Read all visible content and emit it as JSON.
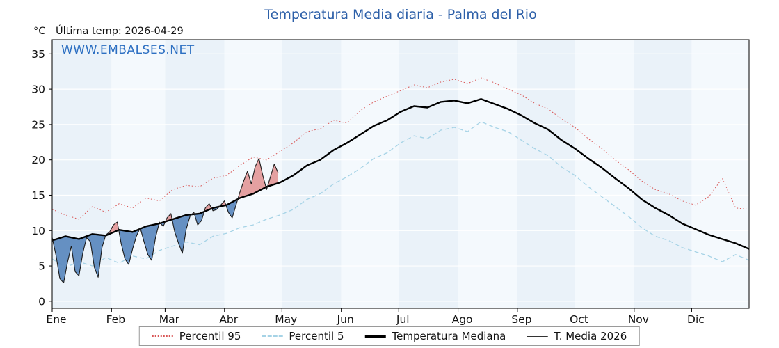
{
  "chart_data": {
    "type": "line",
    "title": "Temperatura Media diaria - Palma del Rio",
    "unit_label": "°C",
    "last_temp_label": "Última temp: 2026-04-29",
    "watermark": "WWW.EMBALSES.NET",
    "ylim": [
      -1,
      37
    ],
    "yticks": [
      0,
      5,
      10,
      15,
      20,
      25,
      30,
      35
    ],
    "months": [
      "Ene",
      "Feb",
      "Mar",
      "Abr",
      "May",
      "Jun",
      "Jul",
      "Ago",
      "Sep",
      "Oct",
      "Nov",
      "Dic"
    ],
    "month_start_days": [
      1,
      32,
      60,
      91,
      121,
      152,
      182,
      213,
      244,
      274,
      305,
      335
    ],
    "days_in_year": 365,
    "grid": true,
    "legend_position": "bottom",
    "plot_bg_odd": "#eaf2f9",
    "plot_bg_even": "#f4f9fd",
    "grid_color": "#ffffff",
    "climatology_days": [
      1,
      8,
      15,
      22,
      29,
      36,
      43,
      50,
      57,
      64,
      71,
      78,
      85,
      92,
      99,
      106,
      113,
      120,
      127,
      134,
      141,
      148,
      155,
      162,
      169,
      176,
      183,
      190,
      197,
      204,
      211,
      218,
      225,
      232,
      239,
      246,
      253,
      260,
      267,
      274,
      281,
      288,
      295,
      302,
      309,
      316,
      323,
      330,
      337,
      344,
      351,
      358,
      365
    ],
    "series": [
      {
        "name": "Percentil 95",
        "kind": "climatology",
        "color": "#d85555",
        "dash": "dotted",
        "width": 1.0,
        "values": [
          13.0,
          12.2,
          11.6,
          13.4,
          12.6,
          13.8,
          13.2,
          14.6,
          14.2,
          15.8,
          16.4,
          16.2,
          17.4,
          17.8,
          19.2,
          20.4,
          20.0,
          21.2,
          22.4,
          24.0,
          24.4,
          25.6,
          25.2,
          27.0,
          28.2,
          29.0,
          29.8,
          30.6,
          30.2,
          31.0,
          31.4,
          30.8,
          31.6,
          30.9,
          30.0,
          29.2,
          28.0,
          27.2,
          25.8,
          24.6,
          23.0,
          21.6,
          20.0,
          18.6,
          17.0,
          15.8,
          15.2,
          14.2,
          13.6,
          14.8,
          17.4,
          13.2,
          13.0
        ]
      },
      {
        "name": "Percentil 5",
        "kind": "climatology",
        "color": "#a6d3e6",
        "dash": "dashed",
        "width": 1.3,
        "values": [
          6.0,
          4.8,
          5.6,
          5.0,
          6.2,
          5.4,
          6.4,
          6.0,
          7.2,
          7.8,
          8.4,
          8.0,
          9.2,
          9.6,
          10.4,
          10.8,
          11.6,
          12.2,
          13.0,
          14.4,
          15.2,
          16.6,
          17.6,
          18.8,
          20.2,
          21.0,
          22.4,
          23.4,
          23.0,
          24.2,
          24.6,
          24.0,
          25.4,
          24.6,
          24.0,
          22.8,
          21.6,
          20.6,
          19.0,
          17.8,
          16.2,
          14.8,
          13.4,
          12.0,
          10.4,
          9.2,
          8.6,
          7.6,
          7.0,
          6.4,
          5.6,
          6.6,
          5.8
        ]
      },
      {
        "name": "Temperatura Mediana",
        "kind": "climatology",
        "color": "#000000",
        "dash": "solid",
        "width": 2.4,
        "values": [
          8.6,
          9.2,
          8.8,
          9.5,
          9.3,
          10.1,
          9.8,
          10.6,
          11.0,
          11.6,
          12.2,
          12.4,
          13.2,
          13.6,
          14.6,
          15.2,
          16.2,
          16.8,
          17.8,
          19.2,
          20.0,
          21.4,
          22.4,
          23.6,
          24.8,
          25.6,
          26.8,
          27.6,
          27.4,
          28.2,
          28.4,
          28.0,
          28.6,
          27.9,
          27.2,
          26.3,
          25.2,
          24.3,
          22.8,
          21.6,
          20.2,
          18.9,
          17.4,
          16.0,
          14.4,
          13.2,
          12.2,
          11.0,
          10.2,
          9.4,
          8.8,
          8.2,
          7.4
        ]
      },
      {
        "name": "T. Media 2026",
        "kind": "current",
        "color": "#1a1a1a",
        "dash": "solid",
        "width": 1.1,
        "days": [
          1,
          3,
          5,
          7,
          9,
          11,
          13,
          15,
          17,
          19,
          21,
          23,
          25,
          27,
          29,
          31,
          33,
          35,
          37,
          39,
          41,
          43,
          45,
          47,
          49,
          51,
          53,
          55,
          57,
          59,
          61,
          63,
          65,
          67,
          69,
          71,
          73,
          75,
          77,
          79,
          81,
          83,
          85,
          87,
          89,
          91,
          93,
          95,
          97,
          99,
          101,
          103,
          105,
          107,
          109,
          111,
          113,
          115,
          117,
          119
        ],
        "values": [
          9.0,
          6.5,
          3.2,
          2.6,
          5.5,
          7.8,
          4.2,
          3.6,
          6.8,
          9.0,
          8.4,
          4.8,
          3.4,
          7.6,
          9.4,
          9.8,
          10.8,
          11.2,
          8.2,
          6.0,
          5.2,
          7.4,
          9.2,
          10.4,
          8.4,
          6.6,
          5.8,
          9.0,
          11.2,
          10.6,
          11.8,
          12.4,
          9.8,
          8.2,
          6.8,
          10.2,
          12.0,
          12.6,
          10.8,
          11.4,
          13.2,
          13.8,
          12.8,
          13.0,
          13.6,
          14.2,
          12.6,
          11.8,
          13.6,
          15.4,
          17.0,
          18.4,
          16.6,
          19.0,
          20.2,
          17.8,
          15.8,
          17.6,
          19.4,
          18.2
        ]
      }
    ],
    "anomaly_fill": {
      "above_color": "#e08a8a",
      "below_color": "#4d7fb8",
      "above_opacity": 0.8,
      "below_opacity": 0.85
    }
  }
}
